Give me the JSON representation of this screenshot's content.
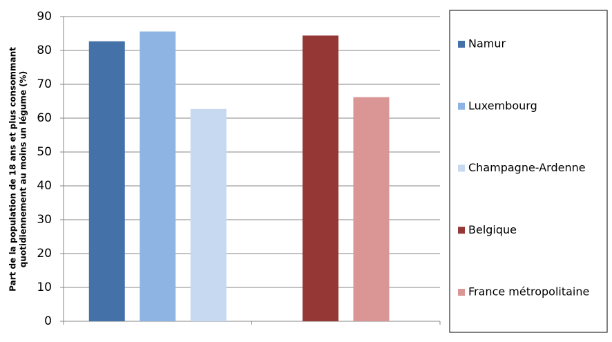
{
  "chart_data": {
    "type": "bar",
    "y_label": [
      "Part de la population de 18 ans et plus consommant",
      "quotidiennement au moins un légume (%)"
    ],
    "categories": [
      null,
      null
    ],
    "series": [
      {
        "name": "Namur",
        "color": "#4472a8",
        "values": [
          82.7,
          null
        ]
      },
      {
        "name": "Luxembourg",
        "color": "#8eb4e3",
        "values": [
          85.6,
          null
        ]
      },
      {
        "name": "Champagne-Ardenne",
        "color": "#c6d9f1",
        "values": [
          62.7,
          null
        ]
      },
      {
        "name": "Belgique",
        "color": "#953735",
        "values": [
          null,
          84.4
        ]
      },
      {
        "name": "France métropolitaine",
        "color": "#d99694",
        "values": [
          null,
          66.2
        ]
      }
    ],
    "ylim": [
      0,
      90
    ],
    "yticks": [
      0,
      10,
      20,
      30,
      40,
      50,
      60,
      70,
      80,
      90
    ],
    "grid": true,
    "legend": "right"
  }
}
